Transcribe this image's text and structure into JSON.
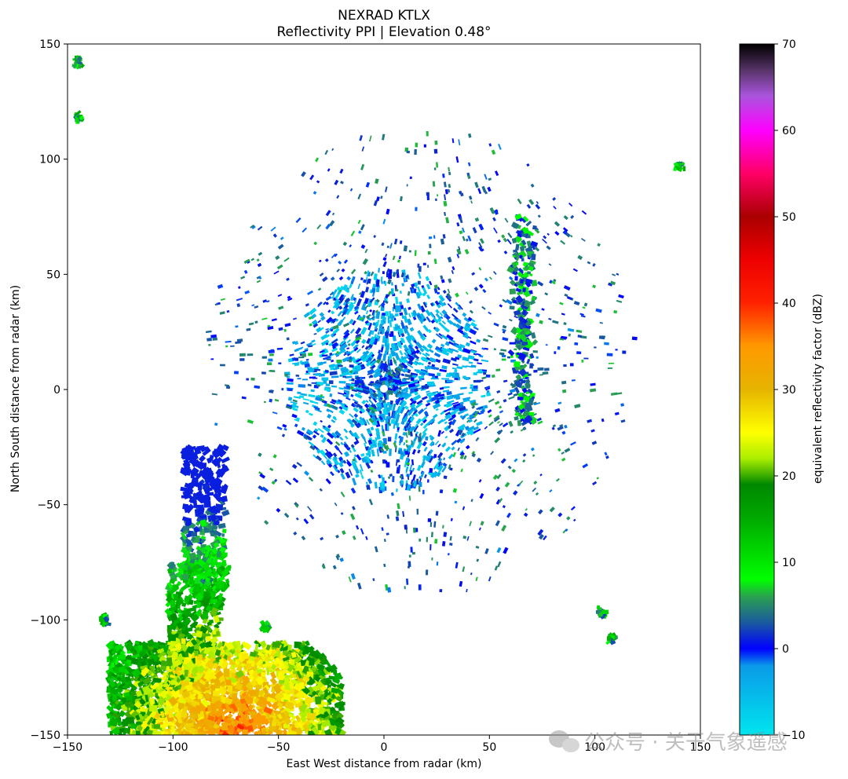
{
  "chart_data": {
    "type": "heatmap",
    "title": "NEXRAD KTLX",
    "subtitle": "Reflectivity PPI | Elevation 0.48°",
    "xlabel": "East West distance from radar (km)",
    "ylabel": "North South distance from radar (km)",
    "xlim": [
      -150,
      150
    ],
    "ylim": [
      -150,
      150
    ],
    "xticks": [
      -150,
      -100,
      -50,
      0,
      50,
      100,
      150
    ],
    "yticks": [
      -150,
      -100,
      -50,
      0,
      50,
      100,
      150
    ],
    "xtick_labels": [
      "−150",
      "−100",
      "−50",
      "0",
      "50",
      "100",
      "150"
    ],
    "ytick_labels": [
      "−150",
      "−100",
      "−50",
      "0",
      "50",
      "100",
      "150"
    ],
    "colorbar": {
      "label": "equivalent reflectivity factor (dBZ)",
      "range": [
        -10,
        70
      ],
      "ticks": [
        -10,
        0,
        10,
        20,
        30,
        40,
        50,
        60,
        70
      ],
      "tick_labels": [
        "−10",
        "0",
        "10",
        "20",
        "30",
        "40",
        "50",
        "60",
        "70"
      ],
      "colormap": [
        {
          "value": -10,
          "color": "#00e5ee"
        },
        {
          "value": -2,
          "color": "#0a9be8"
        },
        {
          "value": 0,
          "color": "#0000ff"
        },
        {
          "value": 3,
          "color": "#1a5aa0"
        },
        {
          "value": 6,
          "color": "#2aa050"
        },
        {
          "value": 8,
          "color": "#00ff00"
        },
        {
          "value": 15,
          "color": "#00aa00"
        },
        {
          "value": 19,
          "color": "#008800"
        },
        {
          "value": 22,
          "color": "#aaee00"
        },
        {
          "value": 25,
          "color": "#ffff00"
        },
        {
          "value": 30,
          "color": "#e6b400"
        },
        {
          "value": 35,
          "color": "#ff9900"
        },
        {
          "value": 40,
          "color": "#ff2200"
        },
        {
          "value": 45,
          "color": "#ee0000"
        },
        {
          "value": 50,
          "color": "#aa0000"
        },
        {
          "value": 55,
          "color": "#ff0066"
        },
        {
          "value": 60,
          "color": "#ff00ff"
        },
        {
          "value": 64,
          "color": "#aa55dd"
        },
        {
          "value": 67,
          "color": "#553366"
        },
        {
          "value": 70,
          "color": "#000000"
        }
      ]
    },
    "radar_location": [
      0,
      0
    ],
    "echo_regions": [
      {
        "region": "near-radar clear-air echo",
        "center_km": [
          0,
          5
        ],
        "radius_km": 45,
        "dbz_range": [
          -10,
          5
        ]
      },
      {
        "region": "scattered echoes",
        "center_km": [
          20,
          10
        ],
        "radius_km": 100,
        "dbz_range": [
          0,
          8
        ]
      },
      {
        "region": "precipitation band",
        "x_km": [
          -150,
          -25
        ],
        "y_km": [
          -150,
          -25
        ],
        "dbz_range": [
          0,
          48
        ]
      }
    ]
  },
  "watermark": "公众号 · 关于气象遥感"
}
